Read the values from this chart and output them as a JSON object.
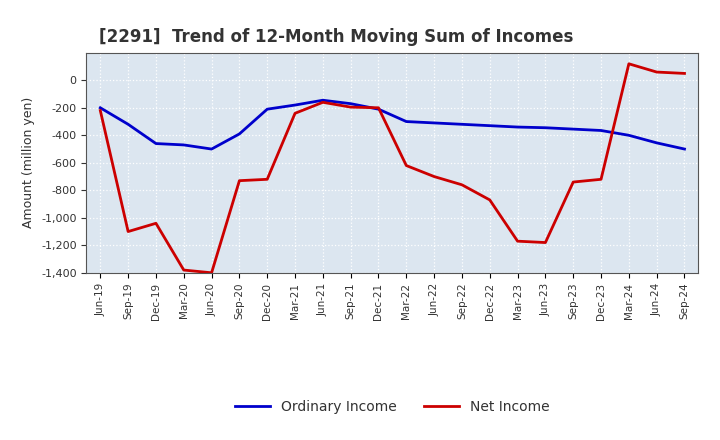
{
  "title": "[2291]  Trend of 12-Month Moving Sum of Incomes",
  "ylabel": "Amount (million yen)",
  "ylim": [
    -1400,
    200
  ],
  "yticks": [
    -1400,
    -1200,
    -1000,
    -800,
    -600,
    -400,
    -200,
    0
  ],
  "plot_bg_color": "#dce6f0",
  "fig_bg_color": "#ffffff",
  "grid_color": "#ffffff",
  "ordinary_income_color": "#0000cc",
  "net_income_color": "#cc0000",
  "x_labels": [
    "Jun-19",
    "Sep-19",
    "Dec-19",
    "Mar-20",
    "Jun-20",
    "Sep-20",
    "Dec-20",
    "Mar-21",
    "Jun-21",
    "Sep-21",
    "Dec-21",
    "Mar-22",
    "Jun-22",
    "Sep-22",
    "Dec-22",
    "Mar-23",
    "Jun-23",
    "Sep-23",
    "Dec-23",
    "Mar-24",
    "Jun-24",
    "Sep-24"
  ],
  "ordinary_income": [
    -200,
    -320,
    -460,
    -470,
    -500,
    -390,
    -210,
    -180,
    -145,
    -170,
    -210,
    -300,
    -310,
    -320,
    -330,
    -340,
    -345,
    -355,
    -365,
    -400,
    -455,
    -500
  ],
  "net_income": [
    -220,
    -1100,
    -1040,
    -1380,
    -1400,
    -730,
    -720,
    -240,
    -160,
    -195,
    -200,
    -620,
    -700,
    -760,
    -870,
    -1170,
    -1180,
    -740,
    -720,
    120,
    60,
    50
  ]
}
